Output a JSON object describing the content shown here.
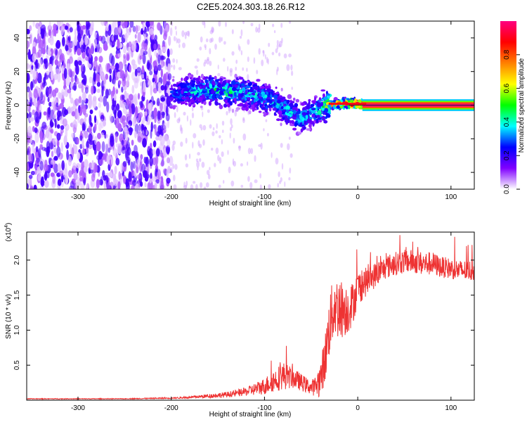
{
  "figure": {
    "title": "C2E5.2024.303.18.26.R12"
  },
  "chart_data": [
    {
      "type": "heatmap",
      "title": "C2E5.2024.303.18.26.R12",
      "xlabel": "Height of straight line (km)",
      "ylabel": "Frequency (Hz)",
      "xlim": [
        -355,
        125
      ],
      "ylim": [
        -50,
        50
      ],
      "xticks": [
        -300,
        -200,
        -100,
        0,
        100
      ],
      "xtick_labels": [
        "-300",
        "-200",
        "-100",
        "0",
        "100"
      ],
      "yticks": [
        -40,
        -20,
        0,
        20,
        40
      ],
      "ytick_labels": [
        "-40",
        "-20",
        "0",
        "20",
        "40"
      ],
      "grid": false,
      "colorbar": {
        "label": "Normalized spectral amplitude",
        "range": [
          0,
          1
        ],
        "ticks": [
          0.0,
          0.2,
          0.4,
          0.6,
          0.8
        ],
        "tick_labels": [
          "0.0",
          "0.2",
          "0.4",
          "0.6",
          "0.8"
        ],
        "colormap": [
          "#ffffff",
          "#8000ff",
          "#0000ff",
          "#00ffff",
          "#00ff00",
          "#ffff00",
          "#ff8000",
          "#ff0000",
          "#ff0080"
        ]
      },
      "noise_region": {
        "x": [
          -355,
          -200
        ],
        "amplitude": 0.12
      },
      "ridge": {
        "x": [
          -200,
          -190,
          -180,
          -170,
          -160,
          -150,
          -140,
          -130,
          -120,
          -110,
          -100,
          -90,
          -80,
          -70,
          -60,
          -50,
          -40,
          -30,
          -20,
          -10,
          0,
          10,
          125
        ],
        "y": [
          6,
          7,
          8,
          8,
          9,
          9,
          8,
          8,
          7,
          6,
          4,
          2,
          -1,
          -5,
          -8,
          -5,
          -2,
          0,
          1,
          1,
          1,
          0,
          0
        ],
        "amplitude": [
          0.25,
          0.3,
          0.35,
          0.35,
          0.4,
          0.4,
          0.4,
          0.35,
          0.35,
          0.35,
          0.35,
          0.35,
          0.35,
          0.35,
          0.35,
          0.35,
          0.4,
          0.6,
          0.7,
          0.85,
          0.95,
          1.0,
          1.0
        ]
      }
    },
    {
      "type": "line",
      "xlabel": "Height of straight line (km)",
      "ylabel": "SNR (10 * v/v)",
      "yscale_label": "(x10",
      "yscale_exponent": "4",
      "xlim": [
        -355,
        125
      ],
      "ylim": [
        0,
        2.4
      ],
      "xticks": [
        -300,
        -200,
        -100,
        0,
        100
      ],
      "xtick_labels": [
        "-300",
        "-200",
        "-100",
        "0",
        "100"
      ],
      "yticks": [
        0.5,
        1.0,
        1.5,
        2.0
      ],
      "ytick_labels": [
        "0.5",
        "1.0",
        "1.5",
        "2.0"
      ],
      "grid": false,
      "series": [
        {
          "color": "#ee3333",
          "x": [
            -355,
            -300,
            -250,
            -200,
            -180,
            -160,
            -140,
            -120,
            -100,
            -90,
            -80,
            -70,
            -60,
            -50,
            -45,
            -40,
            -35,
            -30,
            -25,
            -20,
            -15,
            -10,
            -5,
            0,
            10,
            20,
            30,
            40,
            50,
            60,
            70,
            80,
            90,
            100,
            110,
            125
          ],
          "y": [
            0.02,
            0.02,
            0.02,
            0.03,
            0.04,
            0.06,
            0.08,
            0.12,
            0.2,
            0.28,
            0.35,
            0.32,
            0.25,
            0.18,
            0.2,
            0.3,
            0.6,
            1.1,
            1.35,
            1.3,
            1.3,
            1.3,
            1.4,
            1.6,
            1.7,
            1.8,
            1.9,
            1.95,
            1.98,
            1.98,
            1.95,
            1.95,
            1.9,
            1.88,
            1.85,
            1.85
          ],
          "noise": [
            0.005,
            0.005,
            0.005,
            0.01,
            0.015,
            0.03,
            0.04,
            0.06,
            0.12,
            0.16,
            0.2,
            0.15,
            0.12,
            0.1,
            0.15,
            0.25,
            0.35,
            0.45,
            0.45,
            0.45,
            0.4,
            0.35,
            0.3,
            0.25,
            0.2,
            0.18,
            0.17,
            0.17,
            0.17,
            0.17,
            0.17,
            0.17,
            0.15,
            0.15,
            0.15,
            0.15
          ]
        }
      ]
    }
  ]
}
